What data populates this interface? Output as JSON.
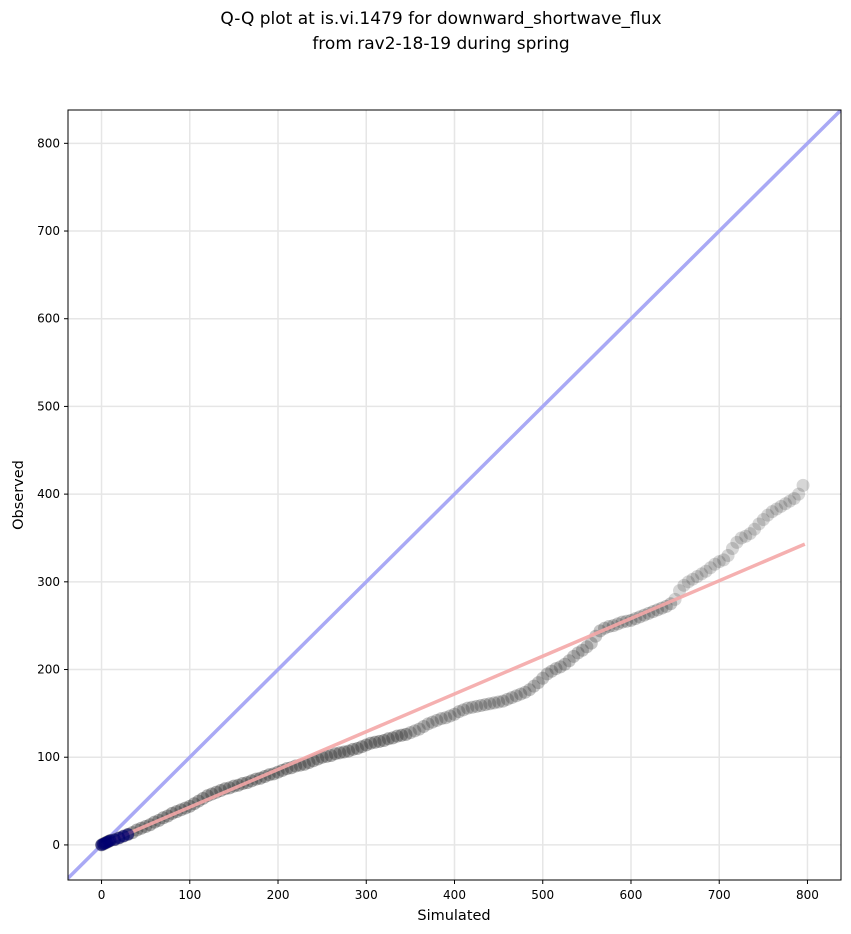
{
  "chart_data": {
    "type": "scatter",
    "title": "Q-Q plot at is.vi.1479 for downward_shortwave_flux",
    "subtitle": "from rav2-18-19 during spring",
    "xlabel": "Simulated",
    "ylabel": "Observed",
    "xlim": [
      -38,
      838
    ],
    "ylim": [
      -40,
      838
    ],
    "x_ticks": [
      0,
      100,
      200,
      300,
      400,
      500,
      600,
      700,
      800
    ],
    "y_ticks": [
      0,
      100,
      200,
      300,
      400,
      500,
      600,
      700,
      800
    ],
    "x_tick_labels": [
      "0",
      "100",
      "200",
      "300",
      "400",
      "500",
      "600",
      "700",
      "800"
    ],
    "y_tick_labels": [
      "0",
      "100",
      "200",
      "300",
      "400",
      "500",
      "600",
      "700",
      "800"
    ],
    "grid": true,
    "colors": {
      "points": "#333333",
      "identity_line": "#a9a9f5",
      "fit_line": "#f4a7a7",
      "low_cluster": "#000070"
    },
    "identity_line": {
      "x": [
        -38,
        838
      ],
      "y": [
        -38,
        838
      ]
    },
    "fit_line": {
      "x": [
        0,
        797
      ],
      "y": [
        0,
        343
      ]
    },
    "series": [
      {
        "x": [
          0,
          2,
          4,
          6,
          8,
          10,
          15,
          20,
          25,
          30,
          35,
          40,
          45,
          50,
          55,
          60,
          65,
          70,
          75,
          80,
          85,
          90,
          95,
          100,
          105,
          110,
          115,
          120,
          125,
          130,
          135,
          140,
          145,
          150,
          155,
          160,
          165,
          170,
          175,
          180,
          185,
          190,
          195,
          200,
          205,
          210,
          215,
          220,
          225,
          230,
          235,
          240,
          245,
          250,
          255,
          260,
          265,
          270,
          275,
          280,
          285,
          290,
          295,
          300,
          305,
          310,
          315,
          320,
          325,
          330,
          335,
          340,
          345,
          350,
          355,
          360,
          365,
          370,
          375,
          380,
          385,
          390,
          395,
          400,
          405,
          410,
          415,
          420,
          425,
          430,
          435,
          440,
          445,
          450,
          455,
          460,
          465,
          470,
          475,
          480,
          485,
          490,
          495,
          500,
          505,
          510,
          515,
          520,
          525,
          530,
          535,
          540,
          545,
          550,
          555,
          560,
          565,
          570,
          575,
          580,
          585,
          590,
          595,
          600,
          605,
          610,
          615,
          620,
          625,
          630,
          635,
          640,
          645,
          650,
          655,
          660,
          665,
          670,
          675,
          680,
          685,
          690,
          695,
          700,
          705,
          710,
          715,
          720,
          725,
          730,
          735,
          740,
          745,
          750,
          755,
          760,
          765,
          770,
          775,
          780,
          785,
          790,
          795
        ],
        "y": [
          0,
          1,
          2,
          3,
          4,
          5,
          6,
          8,
          10,
          12,
          14,
          17,
          19,
          21,
          23,
          26,
          28,
          31,
          33,
          36,
          38,
          40,
          42,
          44,
          47,
          50,
          53,
          56,
          58,
          60,
          62,
          64,
          65,
          67,
          68,
          70,
          71,
          73,
          75,
          76,
          78,
          80,
          81,
          83,
          85,
          87,
          88,
          90,
          91,
          92,
          94,
          96,
          98,
          100,
          101,
          102,
          104,
          105,
          106,
          107,
          109,
          110,
          112,
          114,
          116,
          117,
          118,
          119,
          121,
          122,
          124,
          125,
          126,
          128,
          130,
          132,
          135,
          138,
          140,
          142,
          144,
          145,
          147,
          149,
          152,
          154,
          156,
          157,
          158,
          159,
          160,
          161,
          162,
          163,
          164,
          166,
          168,
          170,
          172,
          174,
          177,
          181,
          185,
          190,
          195,
          198,
          201,
          203,
          206,
          210,
          215,
          219,
          222,
          226,
          230,
          238,
          244,
          247,
          249,
          250,
          252,
          254,
          255,
          256,
          258,
          260,
          262,
          264,
          266,
          268,
          270,
          272,
          275,
          280,
          290,
          296,
          300,
          303,
          306,
          309,
          312,
          316,
          320,
          323,
          325,
          330,
          338,
          345,
          350,
          352,
          355,
          360,
          366,
          371,
          376,
          380,
          383,
          386,
          389,
          392,
          395,
          400,
          410
        ]
      }
    ]
  }
}
